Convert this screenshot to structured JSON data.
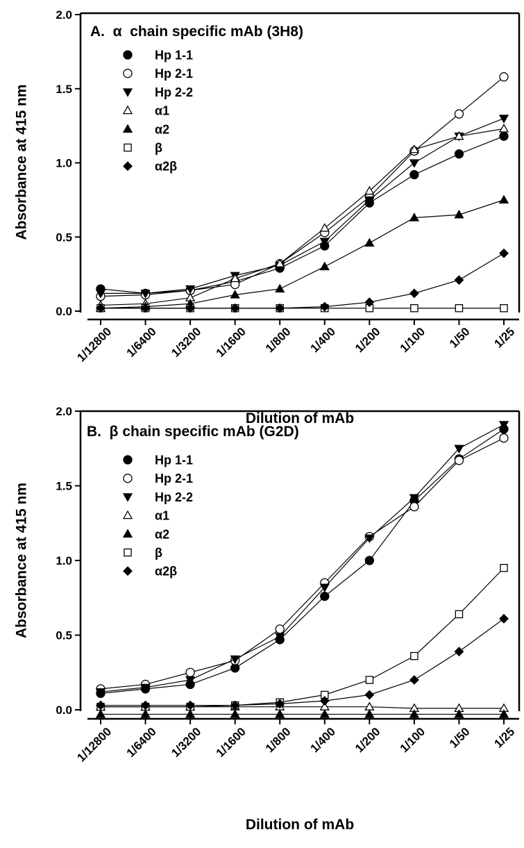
{
  "chart_data": [
    {
      "type": "line",
      "title": "A.  α  chain specific mAb (3H8)",
      "xlabel": "Dilution of mAb",
      "ylabel": "Absorbance at 415 nm",
      "ylim": [
        0,
        2.0
      ],
      "yticks": [
        "0.0",
        "0.5",
        "1.0",
        "1.5",
        "2.0"
      ],
      "categories": [
        "1/12800",
        "1/6400",
        "1/3200",
        "1/1600",
        "1/800",
        "1/400",
        "1/200",
        "1/100",
        "1/50",
        "1/25"
      ],
      "legend_position": "top-left",
      "series": [
        {
          "name": "Hp 1-1",
          "marker": "circle-filled",
          "values": [
            0.15,
            0.12,
            0.14,
            0.2,
            0.29,
            0.44,
            0.73,
            0.92,
            1.06,
            1.18
          ]
        },
        {
          "name": "Hp 2-1",
          "marker": "circle-open",
          "values": [
            0.1,
            0.11,
            0.14,
            0.18,
            0.32,
            0.53,
            0.77,
            1.08,
            1.33,
            1.58
          ]
        },
        {
          "name": "Hp 2-2",
          "marker": "triangle-down-filled",
          "values": [
            0.12,
            0.12,
            0.15,
            0.24,
            0.31,
            0.47,
            0.75,
            1.0,
            1.18,
            1.3
          ]
        },
        {
          "name": "α1",
          "marker": "triangle-up-open",
          "values": [
            0.04,
            0.05,
            0.09,
            0.22,
            0.32,
            0.56,
            0.81,
            1.09,
            1.18,
            1.23
          ]
        },
        {
          "name": "α2",
          "marker": "triangle-up-filled",
          "values": [
            0.02,
            0.03,
            0.05,
            0.11,
            0.15,
            0.3,
            0.46,
            0.63,
            0.65,
            0.75
          ]
        },
        {
          "name": "β",
          "marker": "square-open",
          "values": [
            0.02,
            0.02,
            0.02,
            0.02,
            0.02,
            0.02,
            0.02,
            0.02,
            0.02,
            0.02
          ]
        },
        {
          "name": "α2β",
          "marker": "diamond-filled",
          "values": [
            0.02,
            0.02,
            0.02,
            0.02,
            0.02,
            0.03,
            0.06,
            0.12,
            0.21,
            0.39
          ]
        }
      ]
    },
    {
      "type": "line",
      "title": "B.  β chain specific mAb (G2D)",
      "xlabel": "Dilution of mAb",
      "ylabel": "Absorbance at 415 nm",
      "ylim": [
        0,
        2.0
      ],
      "yticks": [
        "0.0",
        "0.5",
        "1.0",
        "1.5",
        "2.0"
      ],
      "categories": [
        "1/12800",
        "1/6400",
        "1/3200",
        "1/1600",
        "1/800",
        "1/400",
        "1/200",
        "1/100",
        "1/50",
        "1/25"
      ],
      "legend_position": "top-left",
      "series": [
        {
          "name": "Hp 1-1",
          "marker": "circle-filled",
          "values": [
            0.11,
            0.14,
            0.17,
            0.28,
            0.47,
            0.76,
            1.0,
            1.4,
            1.68,
            1.88
          ]
        },
        {
          "name": "Hp 2-1",
          "marker": "circle-open",
          "values": [
            0.14,
            0.17,
            0.25,
            0.33,
            0.54,
            0.85,
            1.16,
            1.36,
            1.67,
            1.82
          ]
        },
        {
          "name": "Hp 2-2",
          "marker": "triangle-down-filled",
          "values": [
            0.12,
            0.15,
            0.2,
            0.34,
            0.49,
            0.82,
            1.15,
            1.42,
            1.75,
            1.91
          ]
        },
        {
          "name": "α1",
          "marker": "triangle-up-open",
          "values": [
            0.02,
            0.02,
            0.02,
            0.02,
            0.02,
            0.02,
            0.02,
            0.01,
            0.01,
            0.01
          ]
        },
        {
          "name": "α2",
          "marker": "triangle-up-filled",
          "values": [
            -0.03,
            -0.03,
            -0.03,
            -0.03,
            -0.03,
            -0.03,
            -0.03,
            -0.03,
            -0.03,
            -0.03
          ]
        },
        {
          "name": "β",
          "marker": "square-open",
          "values": [
            0.02,
            0.02,
            0.02,
            0.03,
            0.05,
            0.1,
            0.2,
            0.36,
            0.64,
            0.95
          ]
        },
        {
          "name": "α2β",
          "marker": "diamond-filled",
          "values": [
            0.03,
            0.03,
            0.03,
            0.03,
            0.04,
            0.06,
            0.1,
            0.2,
            0.39,
            0.61
          ]
        }
      ]
    }
  ]
}
